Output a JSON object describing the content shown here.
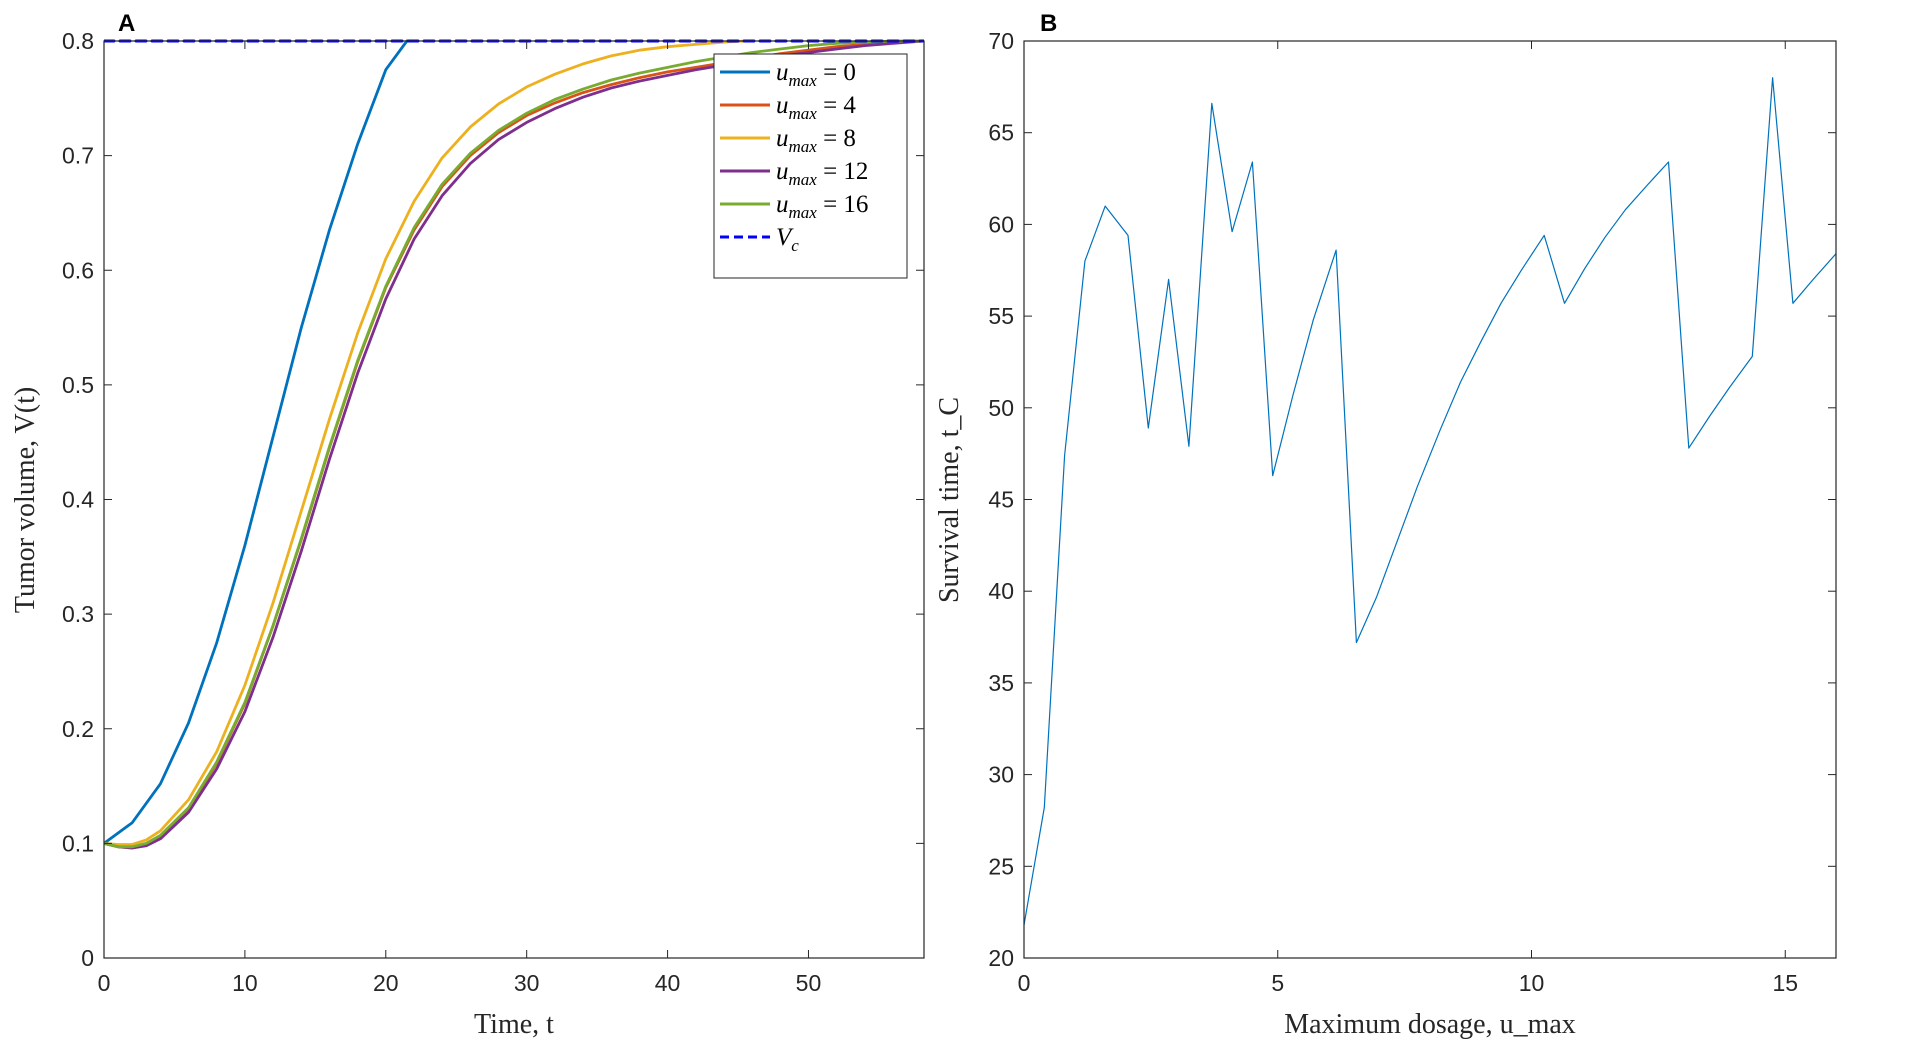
{
  "panels": {
    "a": {
      "label": "A"
    },
    "b": {
      "label": "B"
    }
  },
  "chart_data": [
    {
      "type": "line",
      "xlabel": "Time, t",
      "ylabel": "Tumor volume, V(t)",
      "xlim": [
        0,
        58.2
      ],
      "ylim": [
        0,
        0.8
      ],
      "xticks": [
        0,
        10,
        20,
        30,
        40,
        50
      ],
      "yticks": [
        0,
        0.1,
        0.2,
        0.3,
        0.4,
        0.5,
        0.6,
        0.7,
        0.8
      ],
      "grid": false,
      "legend_position": "top-right",
      "series": [
        {
          "name": "u_max = 0",
          "color": "#0072BD",
          "line": "solid",
          "x": [
            0,
            2,
            4,
            6,
            8,
            10,
            12,
            14,
            16,
            18,
            20,
            21.5
          ],
          "y": [
            0.1,
            0.118,
            0.152,
            0.205,
            0.275,
            0.36,
            0.455,
            0.55,
            0.635,
            0.71,
            0.775,
            0.8
          ]
        },
        {
          "name": "u_max = 4",
          "color": "#D95319",
          "line": "solid",
          "x": [
            0,
            1,
            2,
            3,
            4,
            6,
            8,
            10,
            12,
            14,
            16,
            18,
            20,
            22,
            24,
            26,
            28,
            30,
            32,
            34,
            36,
            38,
            40,
            42,
            44,
            46,
            48,
            50,
            52,
            54,
            56,
            58.2
          ],
          "y": [
            0.1,
            0.097,
            0.096,
            0.099,
            0.106,
            0.13,
            0.17,
            0.222,
            0.29,
            0.365,
            0.445,
            0.52,
            0.585,
            0.635,
            0.673,
            0.7,
            0.72,
            0.735,
            0.746,
            0.755,
            0.762,
            0.768,
            0.773,
            0.777,
            0.781,
            0.785,
            0.789,
            0.792,
            0.795,
            0.797,
            0.799,
            0.8
          ]
        },
        {
          "name": "u_max = 8",
          "color": "#EDB120",
          "line": "solid",
          "x": [
            0,
            1,
            2,
            3,
            4,
            6,
            8,
            10,
            12,
            14,
            16,
            18,
            20,
            22,
            24,
            26,
            28,
            30,
            32,
            34,
            36,
            38,
            40,
            42,
            44,
            45.5
          ],
          "y": [
            0.1,
            0.099,
            0.099,
            0.103,
            0.111,
            0.138,
            0.18,
            0.238,
            0.31,
            0.39,
            0.47,
            0.545,
            0.61,
            0.66,
            0.698,
            0.725,
            0.745,
            0.76,
            0.771,
            0.78,
            0.787,
            0.792,
            0.795,
            0.797,
            0.799,
            0.8
          ]
        },
        {
          "name": "u_max = 12",
          "color": "#7E2F8E",
          "line": "solid",
          "x": [
            0,
            1,
            2,
            3,
            4,
            6,
            8,
            10,
            12,
            14,
            16,
            18,
            20,
            22,
            24,
            26,
            28,
            30,
            32,
            34,
            36,
            38,
            40,
            42,
            44,
            46,
            48,
            50,
            52,
            54,
            56,
            58.2
          ],
          "y": [
            0.1,
            0.097,
            0.096,
            0.098,
            0.104,
            0.127,
            0.165,
            0.215,
            0.28,
            0.355,
            0.435,
            0.51,
            0.575,
            0.627,
            0.665,
            0.693,
            0.714,
            0.729,
            0.741,
            0.751,
            0.759,
            0.765,
            0.77,
            0.775,
            0.779,
            0.783,
            0.787,
            0.79,
            0.793,
            0.796,
            0.798,
            0.8
          ]
        },
        {
          "name": "u_max = 16",
          "color": "#77AC30",
          "line": "solid",
          "x": [
            0,
            1,
            2,
            3,
            4,
            6,
            8,
            10,
            12,
            14,
            16,
            18,
            20,
            22,
            24,
            26,
            28,
            30,
            32,
            34,
            36,
            38,
            40,
            42,
            44,
            46,
            48,
            50,
            52,
            54,
            56,
            58.2
          ],
          "y": [
            0.1,
            0.097,
            0.097,
            0.1,
            0.107,
            0.131,
            0.171,
            0.223,
            0.29,
            0.366,
            0.446,
            0.521,
            0.586,
            0.637,
            0.675,
            0.702,
            0.722,
            0.737,
            0.749,
            0.758,
            0.766,
            0.772,
            0.777,
            0.782,
            0.786,
            0.79,
            0.793,
            0.796,
            0.798,
            0.799,
            0.8,
            0.8
          ]
        },
        {
          "name": "V_c",
          "color": "#0000FF",
          "line": "dashed",
          "x": [
            0,
            58.2
          ],
          "y": [
            0.8,
            0.8
          ]
        }
      ],
      "legend": [
        {
          "lhs": "u",
          "sub": "max",
          "rhs": " = 0"
        },
        {
          "lhs": "u",
          "sub": "max",
          "rhs": " = 4"
        },
        {
          "lhs": "u",
          "sub": "max",
          "rhs": " = 8"
        },
        {
          "lhs": "u",
          "sub": "max",
          "rhs": " = 12"
        },
        {
          "lhs": "u",
          "sub": "max",
          "rhs": " = 16"
        },
        {
          "lhs": "V",
          "sub": "c",
          "rhs": ""
        }
      ]
    },
    {
      "type": "line",
      "xlabel": "Maximum dosage, u_max",
      "ylabel": "Survival time, t_C",
      "xlim": [
        0,
        16
      ],
      "ylim": [
        20,
        70
      ],
      "xticks": [
        0,
        5,
        10,
        15
      ],
      "yticks": [
        20,
        25,
        30,
        35,
        40,
        45,
        50,
        55,
        60,
        65,
        70
      ],
      "grid": false,
      "series": [
        {
          "color": "#0072BD",
          "line": "solid",
          "x": [
            0,
            0.4,
            0.8,
            1.2,
            1.6,
            2.05,
            2.45,
            2.85,
            3.25,
            3.7,
            4.1,
            4.5,
            4.9,
            5.3,
            5.7,
            6.15,
            6.55,
            6.95,
            7.35,
            7.75,
            8.2,
            8.6,
            9.0,
            9.4,
            9.8,
            10.25,
            10.65,
            11.05,
            11.45,
            11.85,
            12.3,
            12.7,
            13.1,
            13.5,
            13.9,
            14.35,
            14.75,
            15.15,
            15.55,
            16
          ],
          "y": [
            21.8,
            28.2,
            47.4,
            58.0,
            61.0,
            59.4,
            48.9,
            57.0,
            47.9,
            66.6,
            59.6,
            63.4,
            46.3,
            50.7,
            54.8,
            58.6,
            37.2,
            39.7,
            42.7,
            45.7,
            48.8,
            51.4,
            53.6,
            55.7,
            57.5,
            59.4,
            55.7,
            57.6,
            59.3,
            60.8,
            62.2,
            63.4,
            47.8,
            49.5,
            51.1,
            52.8,
            68.0,
            55.7,
            57.0,
            58.4
          ]
        }
      ]
    }
  ]
}
